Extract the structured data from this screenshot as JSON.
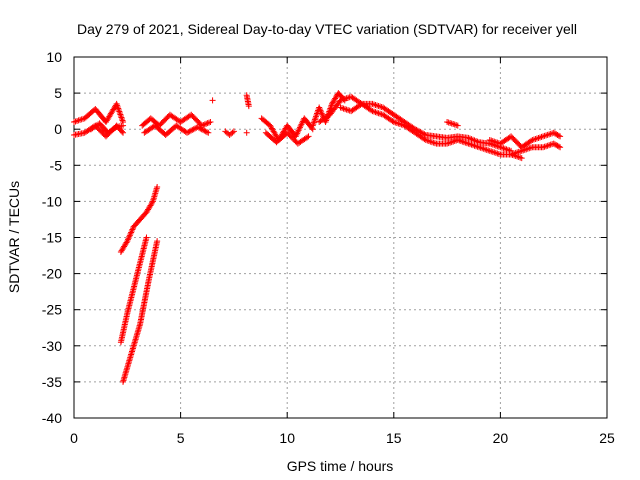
{
  "chart_data": {
    "type": "scatter",
    "title": "Day 279 of 2021, Sidereal Day-to-day VTEC variation (SDTVAR) for receiver yell",
    "xlabel": "GPS time / hours",
    "ylabel": "SDTVAR / TECUs",
    "xlim": [
      0,
      25
    ],
    "ylim": [
      -40,
      10
    ],
    "xticks": [
      0,
      5,
      10,
      15,
      20,
      25
    ],
    "yticks": [
      -40,
      -35,
      -30,
      -25,
      -20,
      -15,
      -10,
      -5,
      0,
      5,
      10
    ],
    "grid": true,
    "marker": "+",
    "series": [
      {
        "name": "SDTVAR",
        "color": "#ff0000",
        "segments": [
          {
            "x": [
              0.0,
              0.5,
              1.0,
              1.5,
              2.0,
              2.3
            ],
            "y": [
              1.0,
              1.5,
              2.8,
              1.0,
              3.5,
              1.0
            ]
          },
          {
            "x": [
              0.0,
              0.5,
              1.0,
              1.5,
              2.0,
              2.3
            ],
            "y": [
              -0.8,
              -0.5,
              0.5,
              -1.0,
              0.5,
              -0.5
            ]
          },
          {
            "x": [
              0.8,
              1.2,
              1.6,
              2.0,
              2.3
            ],
            "y": [
              0.0,
              0.8,
              -0.5,
              0.3,
              0.5
            ]
          },
          {
            "x": [
              2.2,
              2.5,
              2.8,
              3.1,
              3.4,
              3.7,
              3.9
            ],
            "y": [
              -17.0,
              -15.5,
              -13.5,
              -12.5,
              -11.5,
              -10.0,
              -8.0
            ]
          },
          {
            "x": [
              2.2,
              2.5,
              2.8,
              3.1,
              3.4
            ],
            "y": [
              -29.5,
              -25.5,
              -22.0,
              -18.5,
              -15.0
            ]
          },
          {
            "x": [
              2.3,
              2.7,
              3.1,
              3.5,
              3.9
            ],
            "y": [
              -35.0,
              -31.0,
              -27.0,
              -21.0,
              -15.5
            ]
          },
          {
            "x": [
              3.2,
              3.6,
              4.0,
              4.5,
              5.0,
              5.5,
              6.0,
              6.4
            ],
            "y": [
              0.5,
              1.5,
              0.5,
              2.0,
              1.0,
              2.0,
              0.5,
              1.0
            ]
          },
          {
            "x": [
              3.3,
              3.8,
              4.3,
              4.8,
              5.3,
              5.8,
              6.3
            ],
            "y": [
              -0.5,
              0.5,
              -0.8,
              0.5,
              -0.5,
              0.3,
              -0.5
            ]
          },
          {
            "x": [
              6.5
            ],
            "y": [
              4.0
            ]
          },
          {
            "x": [
              7.1,
              7.3,
              7.5
            ],
            "y": [
              -0.3,
              -0.8,
              -0.3
            ]
          },
          {
            "x": [
              8.1,
              8.2
            ],
            "y": [
              4.7,
              3.2
            ]
          },
          {
            "x": [
              8.1
            ],
            "y": [
              -0.5
            ]
          },
          {
            "x": [
              8.8,
              9.2,
              9.6,
              10.0,
              10.4,
              10.8,
              11.2
            ],
            "y": [
              1.5,
              0.5,
              -1.5,
              0.5,
              -1.0,
              1.5,
              0.0
            ]
          },
          {
            "x": [
              9.0,
              9.5,
              10.0,
              10.5,
              11.0
            ],
            "y": [
              -0.5,
              -1.8,
              -0.5,
              -2.0,
              -1.0
            ]
          },
          {
            "x": [
              11.2,
              11.5,
              11.8,
              12.1,
              12.4,
              12.7
            ],
            "y": [
              0.5,
              3.0,
              1.0,
              3.5,
              5.0,
              4.0
            ]
          },
          {
            "x": [
              11.5,
              12.0,
              12.5,
              13.0,
              13.5,
              14.0,
              14.5,
              15.0,
              15.5,
              16.0,
              16.5,
              17.0,
              17.5,
              18.0,
              18.5,
              19.0,
              19.5,
              20.0,
              20.5
            ],
            "y": [
              1.0,
              2.0,
              4.0,
              4.5,
              3.5,
              3.5,
              3.0,
              2.0,
              1.0,
              0.0,
              -0.8,
              -1.0,
              -1.2,
              -1.0,
              -1.2,
              -1.8,
              -2.0,
              -2.5,
              -3.0
            ]
          },
          {
            "x": [
              12.5,
              13.0,
              13.5,
              14.0,
              14.5,
              15.0,
              15.5,
              16.0,
              16.5,
              17.0,
              17.5,
              18.0,
              18.5,
              19.0,
              19.5,
              20.0,
              20.5,
              21.0
            ],
            "y": [
              3.0,
              2.5,
              3.5,
              2.5,
              2.0,
              1.0,
              0.5,
              -0.5,
              -1.5,
              -2.0,
              -2.0,
              -1.5,
              -2.0,
              -2.5,
              -3.0,
              -3.5,
              -3.5,
              -4.0
            ]
          },
          {
            "x": [
              17.5,
              18.0
            ],
            "y": [
              1.0,
              0.5
            ]
          },
          {
            "x": [
              19.5,
              20.0,
              20.5,
              21.0,
              21.5,
              22.0,
              22.5,
              22.8
            ],
            "y": [
              -1.5,
              -2.0,
              -1.0,
              -2.5,
              -1.5,
              -1.0,
              -0.5,
              -1.0
            ]
          },
          {
            "x": [
              20.5,
              21.0,
              21.5,
              22.0,
              22.5,
              22.8
            ],
            "y": [
              -3.5,
              -3.0,
              -2.5,
              -2.5,
              -2.0,
              -2.5
            ]
          }
        ]
      }
    ]
  }
}
